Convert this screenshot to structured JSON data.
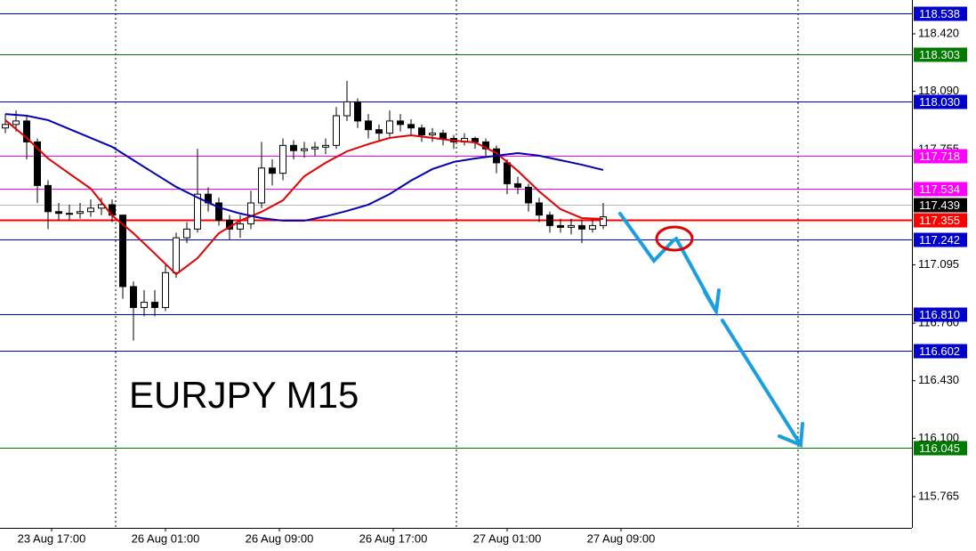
{
  "chart_data": {
    "type": "candlestick",
    "title": "EURJPY M15",
    "ylim": [
      115.586,
      118.614
    ],
    "yticks": [
      {
        "value": 118.42,
        "label": "118.420"
      },
      {
        "value": 118.09,
        "label": "118.090"
      },
      117.755,
      117.095,
      {
        "value": 116.76,
        "label": "116.760"
      },
      {
        "value": 116.43,
        "label": "116.430"
      },
      {
        "value": 116.1,
        "label": "116.100"
      },
      115.765
    ],
    "x_labels": [
      "23 Aug 17:00",
      "26 Aug 01:00",
      "26 Aug 09:00",
      "26 Aug 17:00",
      "27 Aug 01:00",
      "27 Aug 09:00"
    ],
    "candles": [
      [
        117.88,
        117.96,
        117.85,
        117.9
      ],
      [
        117.9,
        117.98,
        117.86,
        117.92
      ],
      [
        117.92,
        117.95,
        117.7,
        117.8
      ],
      [
        117.8,
        117.82,
        117.45,
        117.55
      ],
      [
        117.55,
        117.58,
        117.3,
        117.4
      ],
      [
        117.4,
        117.45,
        117.35,
        117.39
      ],
      [
        117.39,
        117.44,
        117.35,
        117.39
      ],
      [
        117.39,
        117.45,
        117.36,
        117.4
      ],
      [
        117.4,
        117.47,
        117.37,
        117.42
      ],
      [
        117.42,
        117.48,
        117.38,
        117.44
      ],
      [
        117.44,
        117.47,
        117.34,
        117.38
      ],
      [
        117.38,
        117.38,
        116.9,
        116.97
      ],
      [
        116.97,
        117.0,
        116.66,
        116.85
      ],
      [
        116.85,
        116.95,
        116.8,
        116.88
      ],
      [
        116.88,
        116.95,
        116.8,
        116.85
      ],
      [
        116.85,
        117.1,
        116.83,
        117.05
      ],
      [
        117.05,
        117.28,
        117.02,
        117.25
      ],
      [
        117.25,
        117.34,
        117.22,
        117.3
      ],
      [
        117.3,
        117.76,
        117.28,
        117.5
      ],
      [
        117.5,
        117.54,
        117.4,
        117.45
      ],
      [
        117.45,
        117.48,
        117.32,
        117.35
      ],
      [
        117.35,
        117.38,
        117.24,
        117.3
      ],
      [
        117.3,
        117.38,
        117.25,
        117.33
      ],
      [
        117.33,
        117.52,
        117.3,
        117.45
      ],
      [
        117.45,
        117.8,
        117.42,
        117.65
      ],
      [
        117.65,
        117.7,
        117.55,
        117.62
      ],
      [
        117.62,
        117.82,
        117.58,
        117.78
      ],
      [
        117.78,
        117.81,
        117.7,
        117.75
      ],
      [
        117.75,
        117.8,
        117.71,
        117.76
      ],
      [
        117.76,
        117.8,
        117.72,
        117.77
      ],
      [
        117.77,
        117.82,
        117.73,
        117.78
      ],
      [
        117.78,
        118.0,
        117.76,
        117.95
      ],
      [
        117.95,
        118.15,
        117.92,
        118.03
      ],
      [
        118.03,
        118.05,
        117.88,
        117.92
      ],
      [
        117.92,
        117.96,
        117.82,
        117.87
      ],
      [
        117.87,
        117.9,
        117.8,
        117.85
      ],
      [
        117.85,
        117.98,
        117.83,
        117.92
      ],
      [
        117.92,
        117.96,
        117.86,
        117.9
      ],
      [
        117.9,
        117.93,
        117.84,
        117.88
      ],
      [
        117.88,
        117.9,
        117.8,
        117.84
      ],
      [
        117.84,
        117.88,
        117.8,
        117.85
      ],
      [
        117.85,
        117.87,
        117.78,
        117.82
      ],
      [
        117.82,
        117.84,
        117.76,
        117.8
      ],
      [
        117.8,
        117.85,
        117.78,
        117.82
      ],
      [
        117.82,
        117.83,
        117.76,
        117.8
      ],
      [
        117.8,
        117.82,
        117.72,
        117.76
      ],
      [
        117.76,
        117.78,
        117.62,
        117.68
      ],
      [
        117.68,
        117.7,
        117.5,
        117.56
      ],
      [
        117.56,
        117.6,
        117.5,
        117.54
      ],
      [
        117.54,
        117.56,
        117.4,
        117.45
      ],
      [
        117.45,
        117.48,
        117.34,
        117.38
      ],
      [
        117.38,
        117.4,
        117.28,
        117.32
      ],
      [
        117.32,
        117.36,
        117.28,
        117.31
      ],
      [
        117.31,
        117.36,
        117.27,
        117.32
      ],
      [
        117.32,
        117.35,
        117.22,
        117.3
      ],
      [
        117.3,
        117.36,
        117.28,
        117.32
      ],
      [
        117.32,
        117.45,
        117.3,
        117.37
      ]
    ],
    "moving_averages": [
      {
        "color": "#e00000",
        "x": [
          0,
          2,
          4,
          6,
          8,
          10,
          12,
          14,
          16,
          18,
          20,
          22,
          24,
          26,
          28,
          30,
          32,
          34,
          36,
          38,
          40,
          42,
          44,
          46,
          48,
          50,
          52,
          54,
          56
        ],
        "values": [
          117.925,
          117.823,
          117.705,
          117.618,
          117.532,
          117.378,
          117.276,
          117.159,
          117.041,
          117.133,
          117.276,
          117.348,
          117.399,
          117.465,
          117.603,
          117.68,
          117.746,
          117.787,
          117.823,
          117.838,
          117.823,
          117.807,
          117.797,
          117.736,
          117.634,
          117.516,
          117.414,
          117.363,
          117.358
        ]
      },
      {
        "color": "#0000b0",
        "x": [
          0,
          2,
          4,
          6,
          8,
          10,
          12,
          14,
          16,
          18,
          20,
          22,
          24,
          26,
          28,
          30,
          32,
          34,
          36,
          38,
          40,
          42,
          44,
          46,
          48,
          50,
          52,
          54,
          56
        ],
        "values": [
          117.96,
          117.95,
          117.925,
          117.874,
          117.823,
          117.772,
          117.695,
          117.618,
          117.542,
          117.481,
          117.424,
          117.389,
          117.363,
          117.348,
          117.348,
          117.373,
          117.404,
          117.44,
          117.501,
          117.578,
          117.644,
          117.685,
          117.705,
          117.721,
          117.736,
          117.721,
          117.695,
          117.669,
          117.639
        ]
      }
    ],
    "levels": [
      {
        "value": 118.538,
        "color": "#0000cc"
      },
      {
        "value": 118.303,
        "color": "#007a00"
      },
      {
        "value": 118.03,
        "label": "118.030",
        "color": "#0000cc"
      },
      {
        "value": 117.718,
        "color": "#ff00ff"
      },
      {
        "value": 117.534,
        "color": "#ff00ff"
      },
      {
        "value": 117.439,
        "color": "#000000"
      },
      {
        "value": 117.355,
        "color": "#ff0000"
      },
      {
        "value": 117.242,
        "color": "#0000cc"
      },
      {
        "value": 116.81,
        "label": "116.810",
        "color": "#0000cc"
      },
      {
        "value": 116.602,
        "color": "#0000cc"
      },
      {
        "value": 116.045,
        "color": "#007a00"
      }
    ]
  }
}
